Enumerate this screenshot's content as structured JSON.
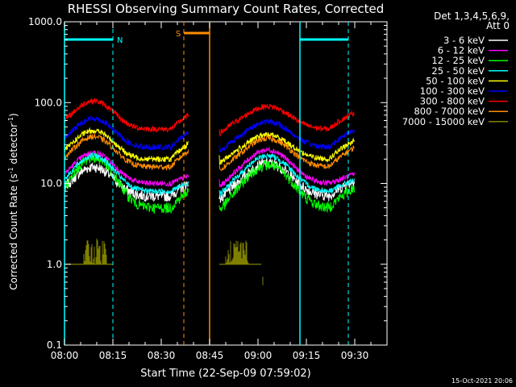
{
  "chart_data": {
    "type": "line",
    "title": "RHESSI Observing Summary Count Rates, Corrected",
    "xlabel": "Start Time (22-Sep-09 07:59:02)",
    "ylabel": "Corrected Count Rate (s^-1 detector^-1)",
    "ylabel_main": "Corrected Count Rate (s",
    "ylabel_exp1": "-1",
    "ylabel_mid": " detector",
    "ylabel_exp2": "-1",
    "ylabel_end": ")",
    "yscale": "log",
    "ylim": [
      0.1,
      1000
    ],
    "xlim_minutes": [
      0,
      100
    ],
    "x_ticks": [
      {
        "t": 0,
        "label": "08:00"
      },
      {
        "t": 15,
        "label": "08:15"
      },
      {
        "t": 30,
        "label": "08:30"
      },
      {
        "t": 45,
        "label": "08:45"
      },
      {
        "t": 60,
        "label": "09:00"
      },
      {
        "t": 75,
        "label": "09:15"
      },
      {
        "t": 90,
        "label": "09:30"
      }
    ],
    "y_ticks": [
      {
        "v": 1000,
        "label": "1000.0"
      },
      {
        "v": 100,
        "label": "100.0"
      },
      {
        "v": 10,
        "label": "10.0"
      },
      {
        "v": 1,
        "label": "1.0"
      },
      {
        "v": 0.1,
        "label": "0.1"
      }
    ],
    "legend_header": [
      "Det 1,3,4,5,6,9,",
      "Att 0"
    ],
    "legend_position": "right",
    "series": [
      {
        "name": "3 - 6 keV",
        "color": "#ffffff",
        "base_range": [
          11,
          7
        ],
        "peak": [
          16,
          8.5,
          18
        ]
      },
      {
        "name": "6 - 12 keV",
        "color": "#ff00ff",
        "base_range": [
          13,
          10
        ],
        "peak": [
          24,
          13,
          26
        ]
      },
      {
        "name": "12 - 25 keV",
        "color": "#00ff00",
        "base_range": [
          9,
          5
        ],
        "peak": [
          21,
          9,
          17
        ]
      },
      {
        "name": "25 - 50 keV",
        "color": "#00ffff",
        "base_range": [
          11,
          8
        ],
        "peak": [
          22,
          11,
          22
        ]
      },
      {
        "name": "50 - 100 keV",
        "color": "#ffff00",
        "base_range": [
          34,
          20
        ],
        "peak": [
          45,
          27,
          40
        ]
      },
      {
        "name": "100 - 300 keV",
        "color": "#0000ff",
        "base_range": [
          47,
          28
        ],
        "peak": [
          64,
          37,
          58
        ]
      },
      {
        "name": "300 - 800 keV",
        "color": "#ff0000",
        "base_range": [
          76,
          47
        ],
        "peak": [
          105,
          60,
          90
        ]
      },
      {
        "name": "800 - 7000 keV",
        "color": "#ff8c00",
        "base_range": [
          28,
          16
        ],
        "peak": [
          38,
          23,
          36
        ]
      },
      {
        "name": "7000 - 15000 keV",
        "color": "#808000",
        "base_range": [
          1,
          1
        ],
        "peak": [
          1,
          1,
          1
        ]
      }
    ],
    "coverage_gaps_minutes": [
      [
        38.5,
        48
      ],
      [
        90,
        100
      ]
    ],
    "data_intervals_minutes": [
      [
        0,
        38.5
      ],
      [
        48,
        90
      ]
    ],
    "annotations": [
      {
        "label": "N",
        "type": "night",
        "color": "#00ffff",
        "bars": [
          [
            0,
            15
          ],
          [
            73,
            88
          ]
        ],
        "starts": [
          15,
          88
        ],
        "ends": [
          0,
          73
        ]
      },
      {
        "label": "S",
        "type": "saa",
        "color": "#ff8c00",
        "bars": [
          [
            37,
            45
          ]
        ],
        "starts": [
          37
        ],
        "ends": [
          45
        ]
      }
    ]
  },
  "footer": {
    "timestamp": "15-Oct-2021 20:06"
  }
}
